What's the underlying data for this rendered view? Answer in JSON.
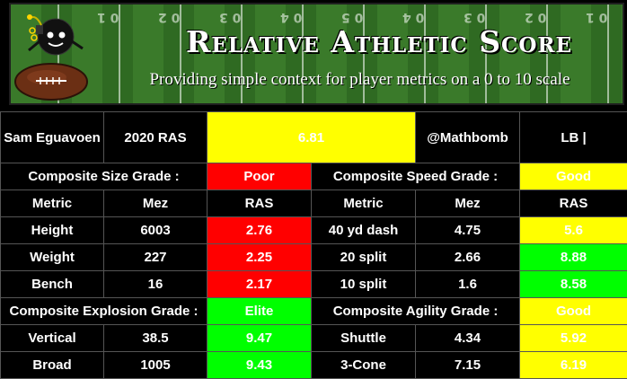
{
  "banner": {
    "title": "Relative Athletic Score",
    "subtitle": "Providing simple context for player metrics on a 0 to 10 scale",
    "yard_numbers": [
      "0 1",
      "0 2",
      "0 3",
      "0 4",
      "0 5",
      "0 4",
      "0 3",
      "0 2",
      "0 1"
    ]
  },
  "header": {
    "player": "Sam Eguavoen",
    "year_ras": "2020 RAS",
    "score": "6.81",
    "handle": "@Mathbomb",
    "position": "LB |"
  },
  "colors": {
    "poor": "#ff0000",
    "elite": "#00ff00",
    "good": "#ffff00"
  },
  "left": {
    "grade1_label": "Composite Size Grade :",
    "grade1_value": "Poor",
    "grade2_label": "Composite Explosion Grade :",
    "grade2_value": "Elite",
    "col_metric": "Metric",
    "col_mez": "Mez",
    "col_ras": "RAS",
    "rows": [
      {
        "metric": "Height",
        "mez": "6003",
        "ras": "2.76"
      },
      {
        "metric": "Weight",
        "mez": "227",
        "ras": "2.25"
      },
      {
        "metric": "Bench",
        "mez": "16",
        "ras": "2.17"
      },
      {
        "metric": "Vertical",
        "mez": "38.5",
        "ras": "9.47"
      },
      {
        "metric": "Broad",
        "mez": "1005",
        "ras": "9.43"
      }
    ]
  },
  "right": {
    "grade1_label": "Composite Speed Grade :",
    "grade1_value": "Good",
    "grade2_label": "Composite Agility Grade :",
    "grade2_value": "Good",
    "col_metric": "Metric",
    "col_mez": "Mez",
    "col_ras": "RAS",
    "rows": [
      {
        "metric": "40 yd dash",
        "mez": "4.75",
        "ras": "5.6"
      },
      {
        "metric": "20 split",
        "mez": "2.66",
        "ras": "8.88"
      },
      {
        "metric": "10 split",
        "mez": "1.6",
        "ras": "8.58"
      },
      {
        "metric": "Shuttle",
        "mez": "4.34",
        "ras": "5.92"
      },
      {
        "metric": "3-Cone",
        "mez": "7.15",
        "ras": "6.19"
      }
    ]
  }
}
